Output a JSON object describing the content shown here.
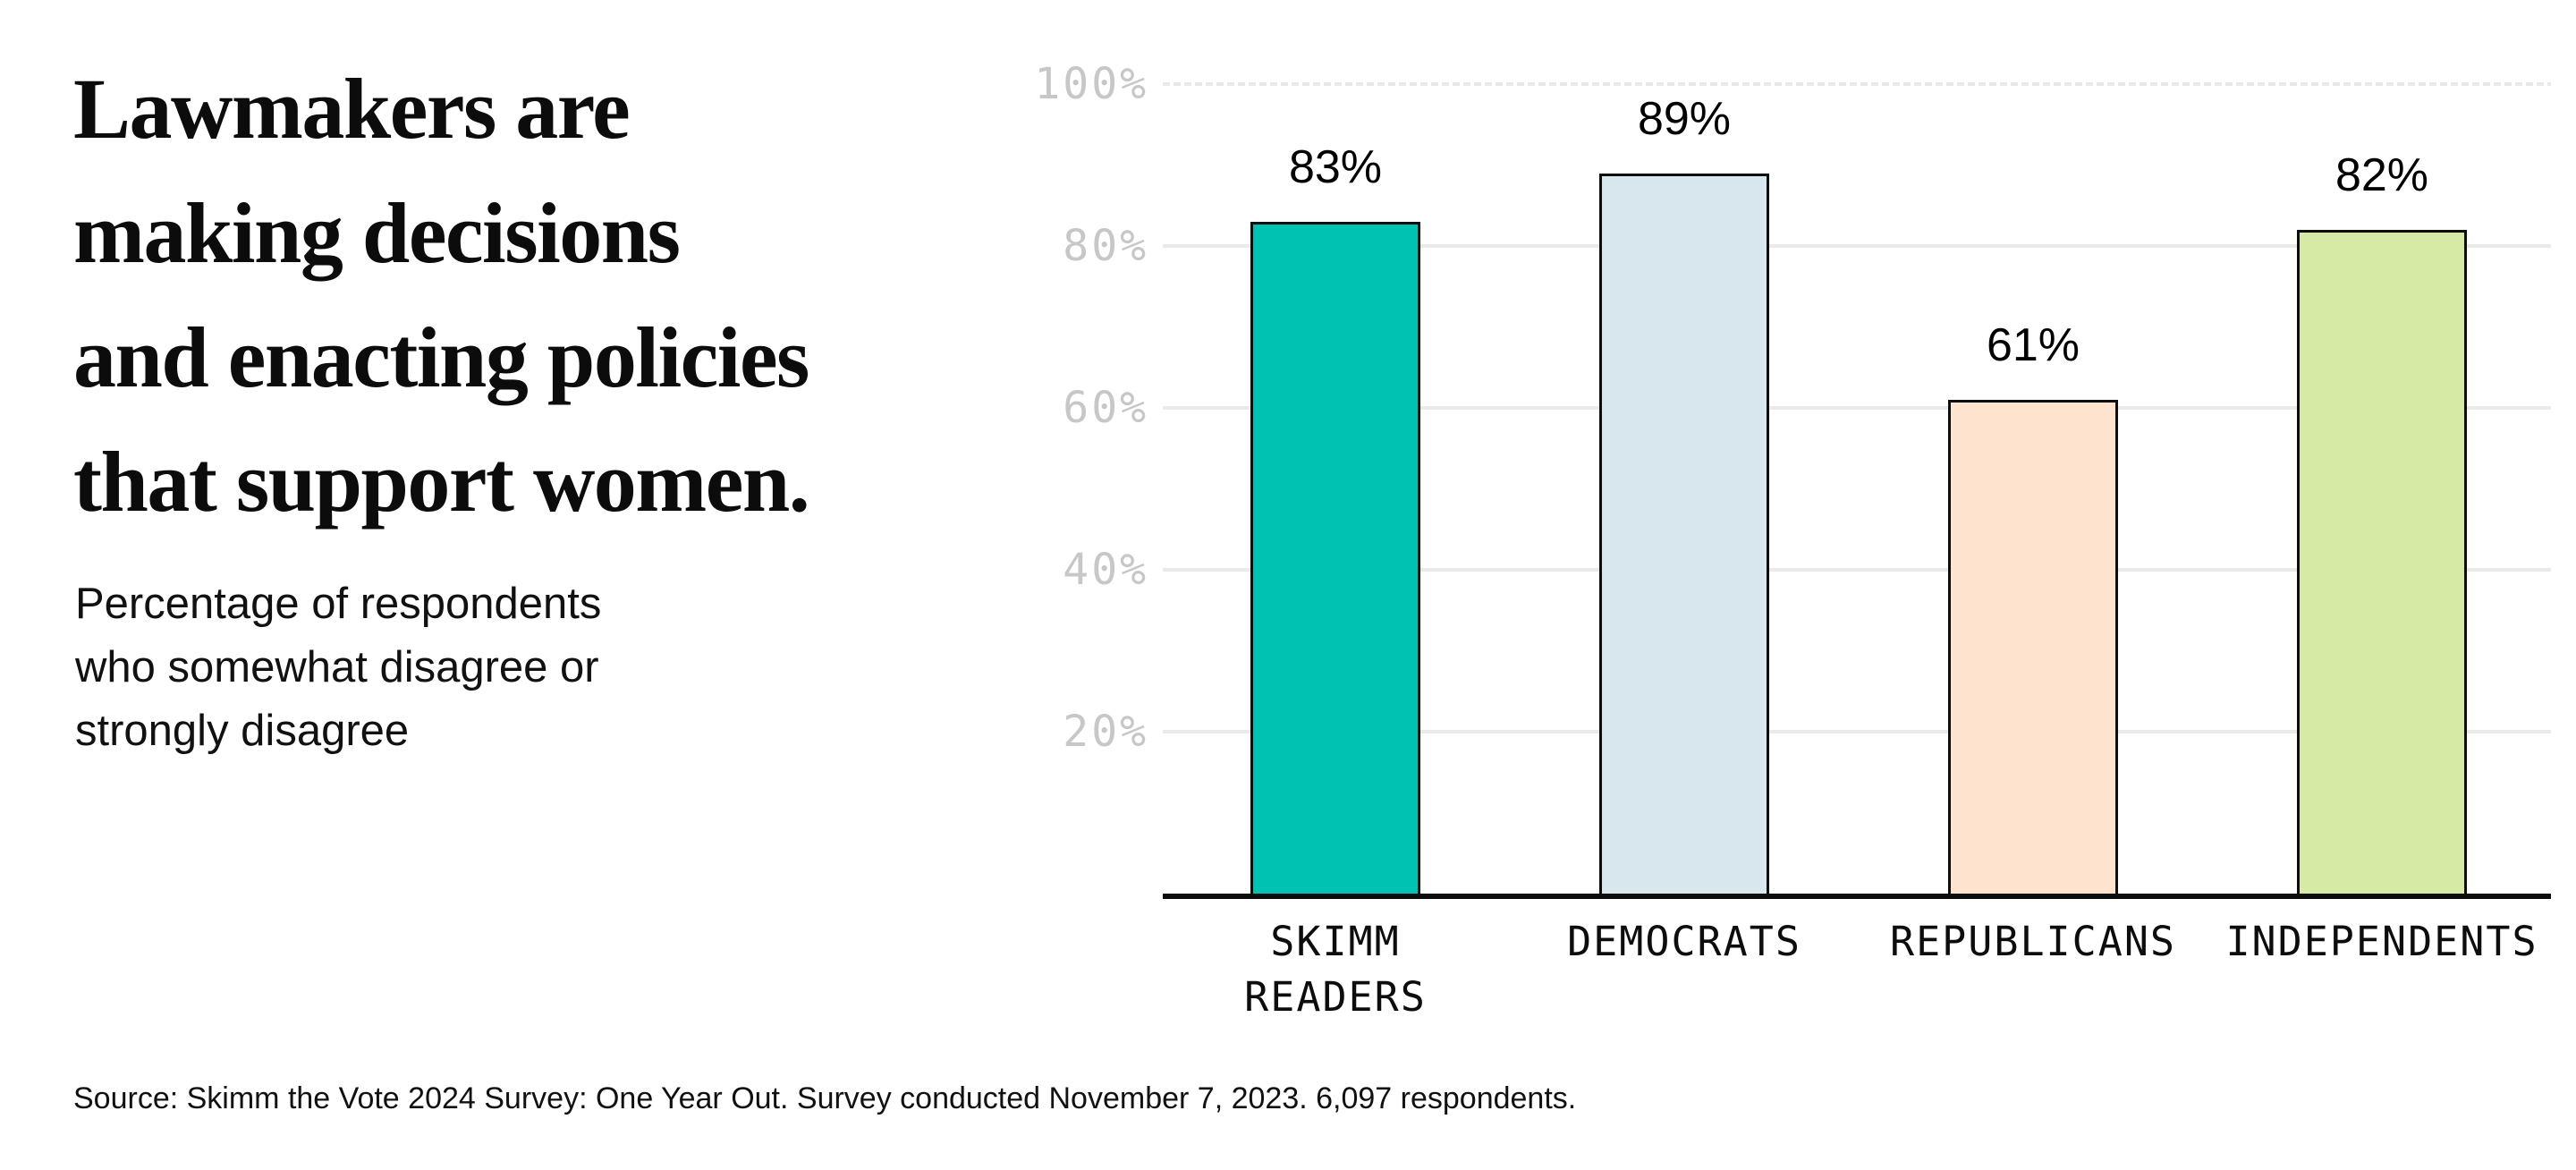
{
  "headline": {
    "text": "Lawmakers are making decisions and enacting policies that support women.",
    "lines": [
      "Lawmakers are",
      "making decisions",
      "and enacting policies",
      "that support women."
    ]
  },
  "subtitle": {
    "text": "Percentage of respondents who somewhat disagree or strongly disagree",
    "lines": [
      "Percentage of respondents",
      "who somewhat disagree or",
      "strongly disagree"
    ]
  },
  "source": {
    "text": "Source: Skimm the Vote 2024 Survey: One Year Out. Survey conducted November 7, 2023. 6,097 respondents."
  },
  "chart_data": {
    "type": "bar",
    "title": "Lawmakers are making decisions and enacting policies that support women.",
    "subtitle": "Percentage of respondents who somewhat disagree or strongly disagree",
    "categories": [
      "SKIMM READERS",
      "DEMOCRATS",
      "REPUBLICANS",
      "INDEPENDENTS"
    ],
    "category_label_lines": [
      [
        "SKIMM",
        "READERS"
      ],
      [
        "DEMOCRATS"
      ],
      [
        "REPUBLICANS"
      ],
      [
        "INDEPENDENTS"
      ]
    ],
    "values": [
      83,
      89,
      61,
      82
    ],
    "value_labels": [
      "83%",
      "89%",
      "61%",
      "82%"
    ],
    "bar_colors": [
      "#00C2B2",
      "#D8E7EE",
      "#FEE4CE",
      "#D6E9A5"
    ],
    "bar_border_color": "#0d0d0d",
    "xlabel": "",
    "ylabel": "",
    "ylim": [
      0,
      100
    ],
    "ytick_values": [
      20,
      40,
      60,
      80,
      100
    ],
    "ytick_labels": [
      "20%",
      "40%",
      "60%",
      "80%",
      "100%"
    ],
    "grid": true,
    "gridline_color": "#EAEAEA",
    "top_gridline_style": "dashed",
    "tick_label_color": "#C7C7C7",
    "axis_line_color": "#0D0D0D",
    "legend": false
  }
}
